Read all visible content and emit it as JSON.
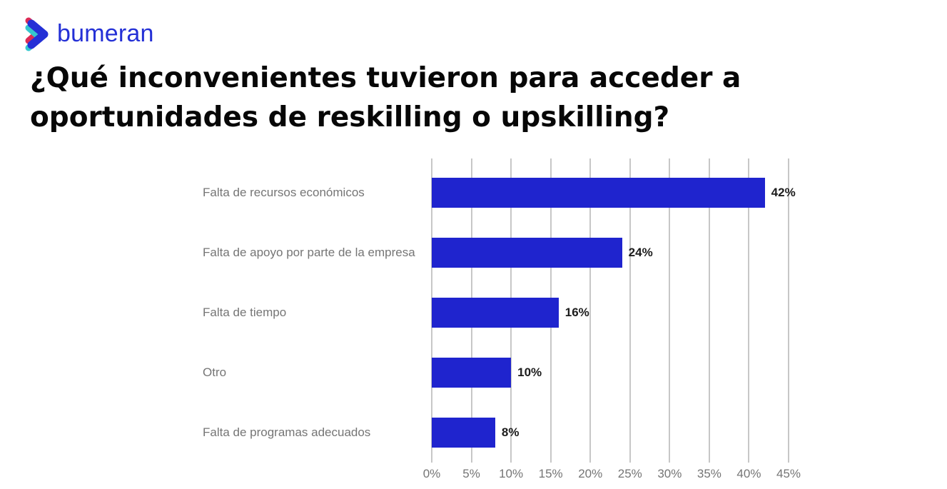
{
  "logo": {
    "text": "bumeran",
    "text_color": "#2430D6",
    "icon_colors": {
      "red": "#DD2A55",
      "teal": "#35C7CE",
      "blue": "#2430D6"
    }
  },
  "title": {
    "line1": "¿Qué inconvenientes tuvieron para acceder a",
    "line2": "oportunidades de reskilling o upskilling?"
  },
  "chart_data": {
    "type": "bar",
    "orientation": "horizontal",
    "title": "",
    "xlabel": "",
    "ylabel": "",
    "categories": [
      "Falta de recursos económicos",
      "Falta de apoyo por parte de la empresa",
      "Falta de tiempo",
      "Otro",
      "Falta de programas adecuados"
    ],
    "values": [
      42,
      24,
      16,
      10,
      8
    ],
    "value_labels": [
      "42%",
      "24%",
      "16%",
      "10%",
      "8%"
    ],
    "x_tick_values": [
      0,
      5,
      10,
      15,
      20,
      25,
      30,
      35,
      40,
      45
    ],
    "x_tick_labels": [
      "0%",
      "5%",
      "10%",
      "15%",
      "20%",
      "25%",
      "30%",
      "35%",
      "40%",
      "45%"
    ],
    "xlim": [
      0,
      45
    ],
    "grid": true,
    "legend": "none",
    "bar_color": "#1F24CE",
    "gridline_color": "#c7c7c7",
    "category_label_color": "#757575",
    "tick_label_color": "#757575",
    "value_label_color": "#1c1c1c"
  }
}
